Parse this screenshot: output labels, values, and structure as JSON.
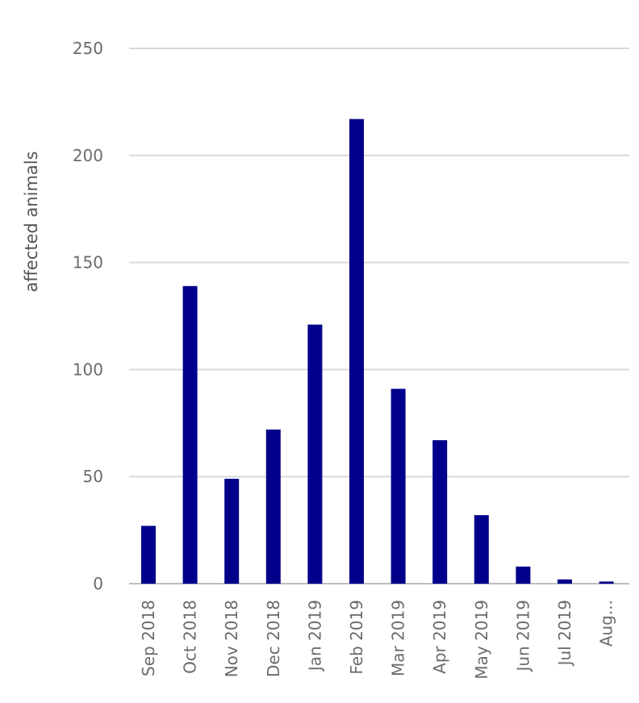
{
  "chart_data": {
    "type": "bar",
    "ylabel": "affected animals",
    "xlabel": "",
    "ylim": [
      0,
      250
    ],
    "yticks": [
      0,
      50,
      100,
      150,
      200,
      250
    ],
    "grid": true,
    "categories": [
      "Sep 2018",
      "Oct 2018",
      "Nov 2018",
      "Dec 2018",
      "Jan 2019",
      "Feb 2019",
      "Mar 2019",
      "Apr 2019",
      "May 2019",
      "Jun 2019",
      "Jul 2019",
      "Aug..."
    ],
    "values": [
      27,
      139,
      49,
      72,
      121,
      217,
      91,
      67,
      32,
      8,
      2,
      1
    ],
    "colors": {
      "bar": "#00008b"
    }
  }
}
